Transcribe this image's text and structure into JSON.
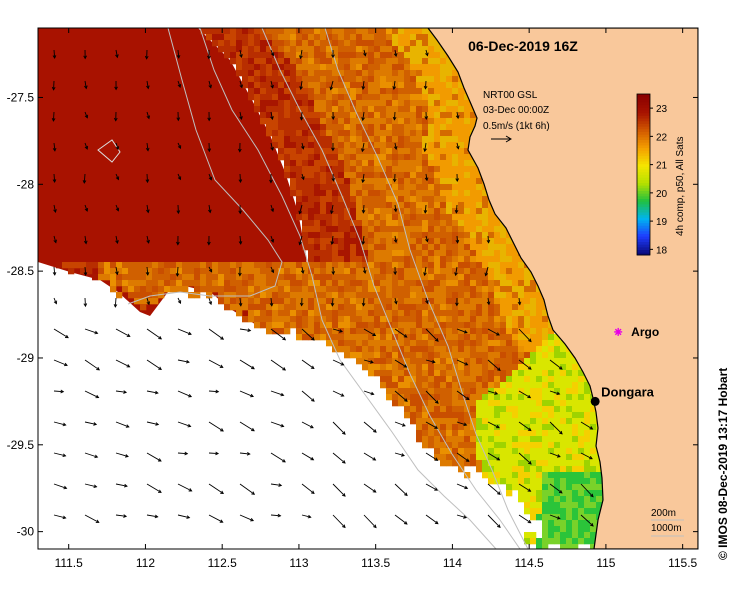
{
  "title": "06-Dec-2019 16Z",
  "credit": "© IMOS 08-Dec-2019 13:17 Hobart",
  "current_legend": {
    "line1": "NRT00 GSL",
    "line2": "03-Dec 00:00Z",
    "line3": "0.5m/s (1kt 6h)"
  },
  "colorbar": {
    "label": "4h comp, p50, All Sats",
    "ticks": [
      "23",
      "22",
      "21",
      "20",
      "19",
      "18"
    ],
    "tick_values": [
      23,
      22,
      21,
      20,
      19,
      18
    ],
    "range": [
      17.8,
      23.5
    ],
    "colors": [
      "#0a0a7a",
      "#1e3cff",
      "#00b4f0",
      "#20c040",
      "#b4e000",
      "#f5e600",
      "#f5a000",
      "#d25a00",
      "#a81400",
      "#8b0000"
    ]
  },
  "axes": {
    "lon_ticks": [
      "111.5",
      "112",
      "112.5",
      "113",
      "113.5",
      "114",
      "114.5",
      "115",
      "115.5"
    ],
    "lon_values": [
      111.5,
      112,
      112.5,
      113,
      113.5,
      114,
      114.5,
      115,
      115.5
    ],
    "lat_ticks": [
      "-27.5",
      "-28",
      "-28.5",
      "-29",
      "-29.5",
      "-30"
    ],
    "lat_values": [
      -27.5,
      -28,
      -28.5,
      -29,
      -29.5,
      -30
    ],
    "lon_range": [
      111.3,
      115.6
    ],
    "lat_range": [
      -30.1,
      -27.1
    ]
  },
  "places": [
    {
      "name": "Dongara",
      "lon": 114.93,
      "lat": -29.25,
      "marker": "black-dot"
    },
    {
      "name": "Argo",
      "lon": 115.08,
      "lat": -28.85,
      "marker": "magenta-star"
    }
  ],
  "isobaths": {
    "shallow": "200m",
    "deep": "1000m"
  },
  "colors": {
    "land": "#f9c89b",
    "coast": "#000000",
    "ocean_nodata": "#ffffff",
    "sst_hot": "#a81200",
    "isobath": "#bfbfbf",
    "argo": "#e600e6"
  }
}
